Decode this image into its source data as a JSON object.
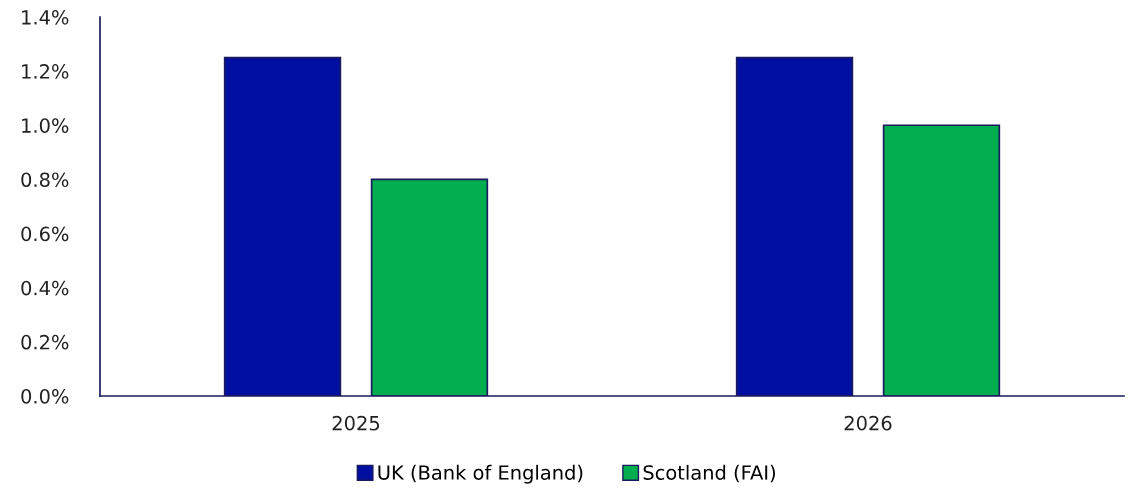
{
  "chart_data": {
    "type": "bar",
    "categories": [
      "2025",
      "2026"
    ],
    "series": [
      {
        "name": "UK (Bank of England)",
        "color": "#000f9f",
        "values": [
          1.25,
          1.25
        ]
      },
      {
        "name": "Scotland (FAI)",
        "color": "#00ad4f",
        "values": [
          0.8,
          1.0
        ]
      }
    ],
    "ylim": [
      0,
      1.4
    ],
    "yticks": [
      {
        "value": 0,
        "label": "0.0%"
      },
      {
        "value": 0.2,
        "label": "0.2%"
      },
      {
        "value": 0.4,
        "label": "0.4%"
      },
      {
        "value": 0.6,
        "label": "0.6%"
      },
      {
        "value": 0.8,
        "label": "0.8%"
      },
      {
        "value": 1.0,
        "label": "1.0%"
      },
      {
        "value": 1.2,
        "label": "1.2%"
      },
      {
        "value": 1.4,
        "label": "1.4%"
      }
    ],
    "grid": false,
    "legend": "bottom"
  }
}
